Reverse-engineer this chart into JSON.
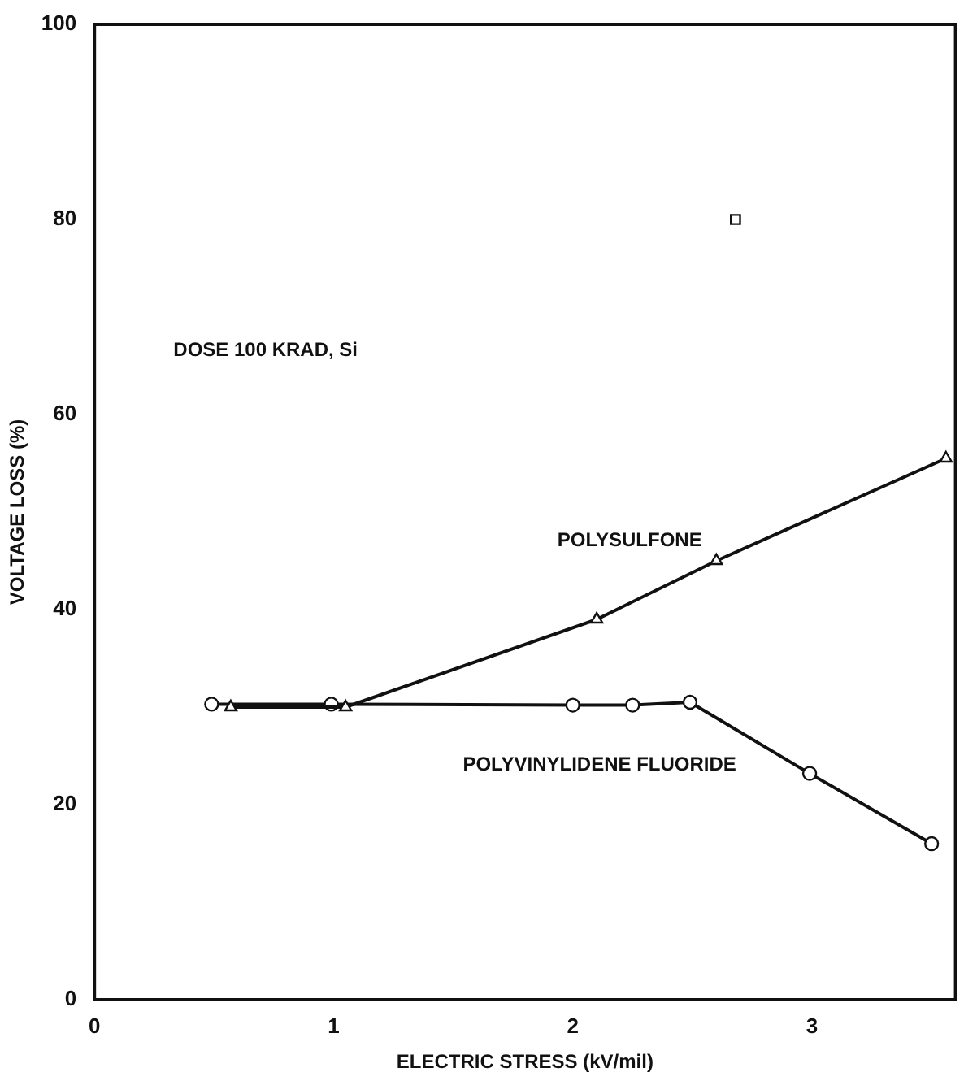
{
  "chart_data": {
    "type": "line",
    "xlabel": "ELECTRIC STRESS (kV/mil)",
    "ylabel": "VOLTAGE LOSS (%)",
    "xlim": [
      0,
      3.6
    ],
    "xticks": [
      0,
      1,
      2,
      3
    ],
    "ylim": [
      0,
      100
    ],
    "yticks": [
      0,
      20,
      40,
      60,
      80,
      100
    ],
    "grid": false,
    "legend": false,
    "line_style": "solid",
    "series": [
      {
        "name": "POLYSULFONE",
        "color": "#111111",
        "marker": "triangle",
        "x": [
          0.57,
          1.05,
          2.1,
          2.6,
          3.56
        ],
        "values": [
          30,
          30,
          39,
          45,
          55.5
        ]
      },
      {
        "name": "POLYVINYLIDENE FLUORIDE",
        "color": "#111111",
        "marker": "circle",
        "x": [
          0.49,
          0.99,
          2.0,
          2.25,
          2.49,
          2.99,
          3.5
        ],
        "values": [
          30.3,
          30.3,
          30.2,
          30.2,
          30.5,
          23.2,
          16
        ]
      },
      {
        "type": "scatter",
        "color": "#111111",
        "marker": "square",
        "x": [
          2.68
        ],
        "values": [
          80
        ]
      }
    ],
    "annotations": [
      "DOSE 100 KRAD, Si"
    ]
  }
}
